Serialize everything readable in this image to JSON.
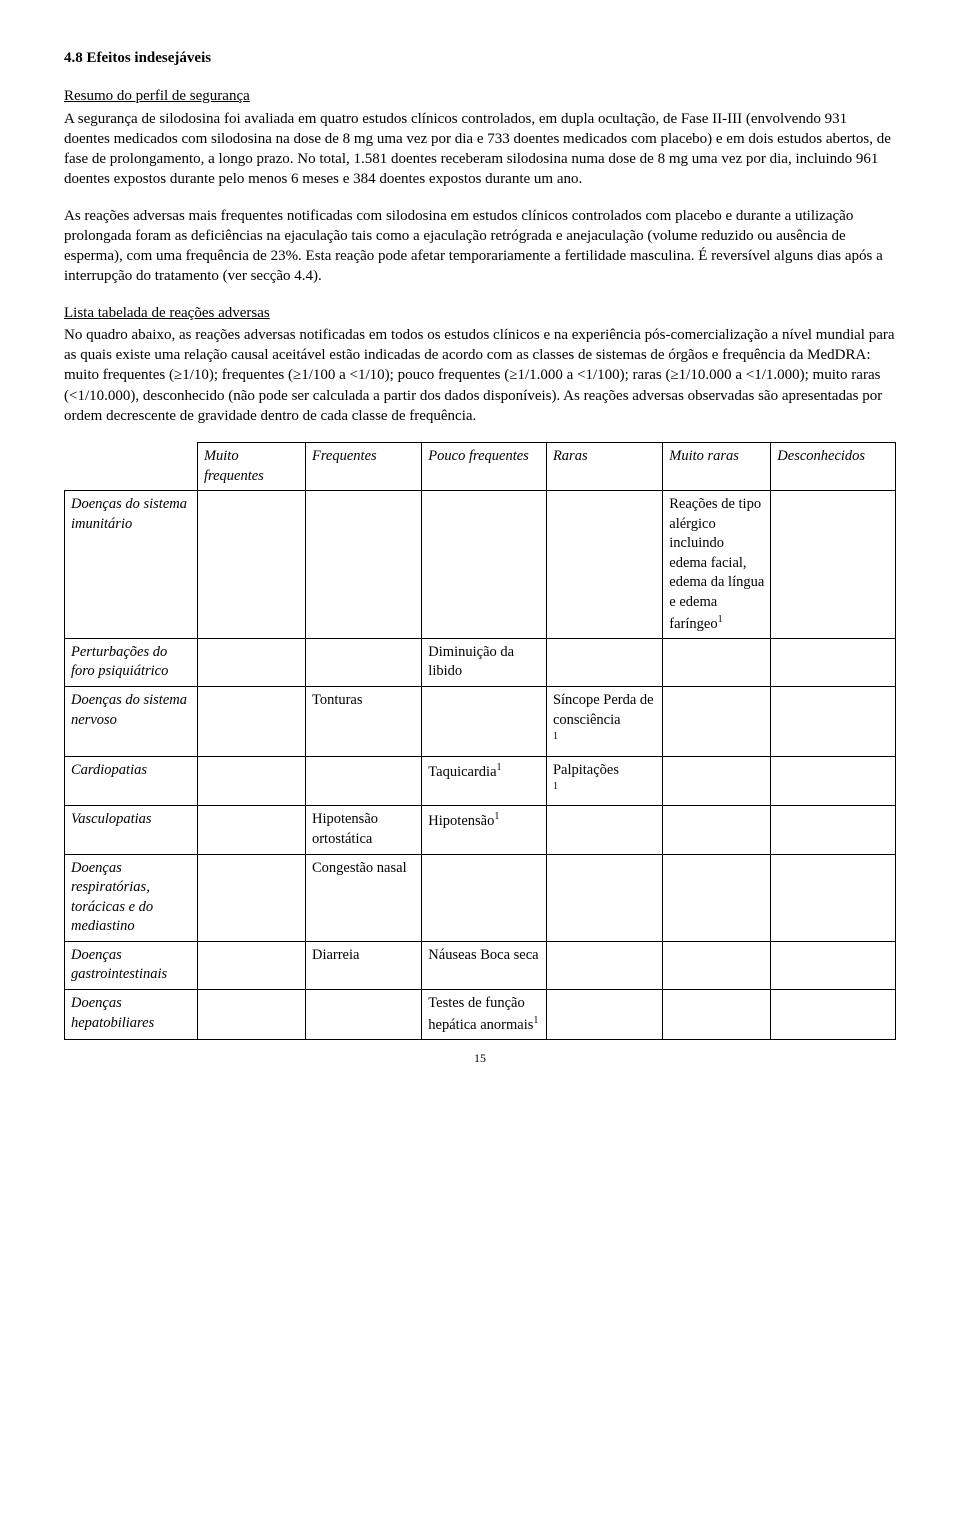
{
  "heading": "4.8    Efeitos indesejáveis",
  "sub1": "Resumo do perfil de segurança",
  "para1": "A segurança de silodosina foi avaliada em quatro estudos clínicos controlados, em dupla ocultação, de Fase II-III (envolvendo 931 doentes medicados com silodosina na dose de 8 mg uma vez por dia e 733 doentes medicados com placebo) e em dois estudos abertos, de fase de prolongamento, a longo prazo. No total, 1.581 doentes receberam silodosina numa dose de 8 mg uma vez por dia, incluindo 961 doentes expostos durante pelo menos 6 meses e 384 doentes expostos durante um ano.",
  "para2": "As reações adversas mais frequentes notificadas com silodosina em estudos clínicos controlados com placebo e durante a utilização prolongada foram as deficiências na ejaculação tais como a ejaculação retrógrada e anejaculação (volume reduzido ou ausência de esperma), com uma frequência de 23%. Esta reação pode afetar temporariamente a fertilidade masculina. É reversível alguns dias após a interrupção do tratamento (ver secção 4.4).",
  "sub2": "Lista tabelada de reações adversas",
  "para3": "No quadro abaixo, as reações adversas notificadas em todos os estudos clínicos e na experiência pós-comercialização a nível mundial para as quais existe uma relação causal aceitável estão indicadas de acordo com as classes de sistemas de órgãos e frequência da MedDRA: muito frequentes (≥1/10); frequentes (≥1/100 a <1/10); pouco frequentes (≥1/1.000 a <1/100); raras (≥1/10.000 a <1/1.000); muito raras (<1/10.000), desconhecido (não pode ser calculada a partir dos dados disponíveis). As reações adversas observadas são apresentadas por ordem decrescente de gravidade dentro de cada classe de frequência.",
  "table": {
    "headers": {
      "c1": "Muito frequentes",
      "c2": "Frequentes",
      "c3": "Pouco frequentes",
      "c4": "Raras",
      "c5": "Muito raras",
      "c6": "Desconhecidos"
    },
    "rows": {
      "r1": {
        "cat": "Doenças do sistema imunitário",
        "muito_raras": "Reações de tipo alérgico incluindo edema facial, edema da língua e edema faríngeo"
      },
      "r2": {
        "cat": "Perturbações do foro psiquiátrico",
        "pouco": "Diminuição da libido"
      },
      "r3": {
        "cat": "Doenças do sistema nervoso",
        "freq": "Tonturas",
        "raras": "Síncope Perda de consciência"
      },
      "r4": {
        "cat": "Cardiopatias",
        "pouco": "Taquicardia",
        "raras": "Palpitações"
      },
      "r5": {
        "cat": "Vasculopatias",
        "freq": "Hipotensão ortostática",
        "pouco": "Hipotensão"
      },
      "r6": {
        "cat": "Doenças respiratórias, torácicas e do mediastino",
        "freq": "Congestão nasal"
      },
      "r7": {
        "cat": "Doenças gastrointestinais",
        "freq": "Diarreia",
        "pouco": "Náuseas Boca seca"
      },
      "r8": {
        "cat": "Doenças hepatobiliares",
        "pouco": "Testes de função hepática anormais"
      }
    }
  },
  "pageNumber": "15"
}
